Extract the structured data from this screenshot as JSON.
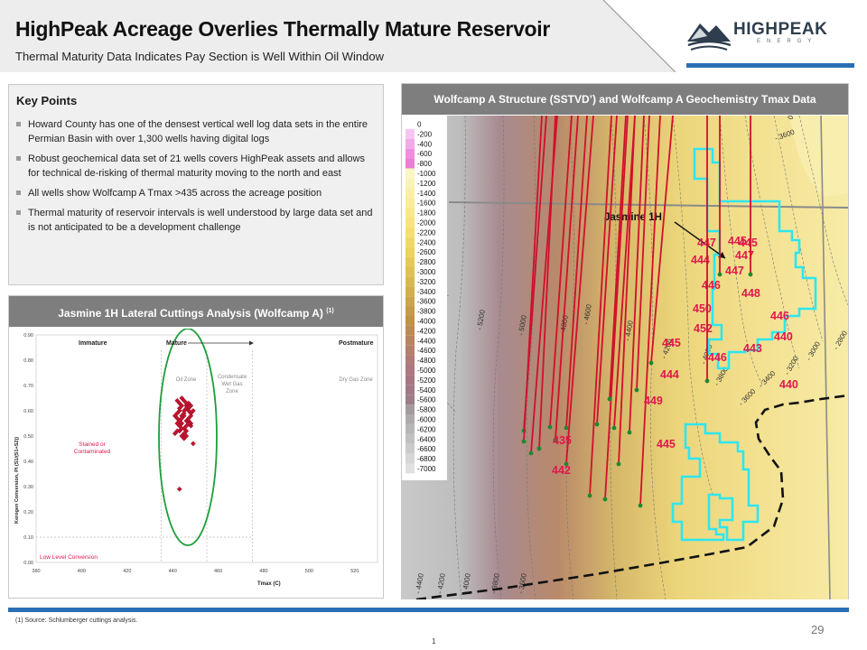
{
  "header": {
    "title": "HighPeak Acreage Overlies Thermally Mature Reservoir",
    "subtitle": "Thermal Maturity Data Indicates Pay Section is Well Within Oil Window"
  },
  "logo": {
    "name": "HIGHPEAK",
    "sub": "ENERGY"
  },
  "key_points": {
    "title": "Key Points",
    "items": [
      "Howard County has one of the densest vertical well log data sets in the entire Permian Basin with over 1,300 wells having digital logs",
      "Robust geochemical data set of 21 wells covers HighPeak assets and allows for technical de-risking of thermal maturity moving to the north and east",
      "All wells show Wolfcamp A Tmax >435 across the acreage position",
      "Thermal maturity of reservoir intervals is well understood by large data set and is not anticipated to be a development challenge"
    ]
  },
  "cuttings": {
    "title": "Jasmine 1H Lateral Cuttings Analysis (Wolfcamp A)",
    "title_sup": "(1)",
    "zone_labels": {
      "immature": "Immature",
      "mature": "Mature",
      "postmature": "Postmature",
      "oil_zone": "Oil Zone",
      "condensate_1": "Condensate",
      "condensate_2": "Wet Gas",
      "condensate_3": "Zone",
      "dry_gas": "Dry Gas Zone",
      "stained_1": "Stained or",
      "stained_2": "Contaminated",
      "low_level": "Low Level Conversion"
    },
    "chart_data": {
      "type": "scatter",
      "xlabel": "Tmax (C)",
      "ylabel": "Kerogen Conversion, PI (S1/(S1+S2))",
      "xlim": [
        380,
        530
      ],
      "ylim": [
        0.0,
        0.9
      ],
      "x_ticks": [
        "380",
        "400",
        "420",
        "440",
        "460",
        "480",
        "500",
        "520"
      ],
      "y_ticks": [
        "0.00",
        "0.10",
        "0.20",
        "0.30",
        "0.40",
        "0.50",
        "0.60",
        "0.70",
        "0.80",
        "0.90"
      ],
      "series": [
        {
          "x": [
            442,
            443,
            444,
            445,
            446,
            447,
            443,
            444,
            445,
            446,
            447,
            448,
            442,
            443,
            444,
            445,
            446,
            447,
            448,
            449,
            441,
            442,
            443,
            444,
            445,
            446,
            447,
            448,
            442,
            443,
            444,
            445,
            446,
            447,
            448,
            443,
            444,
            445,
            446,
            447,
            444,
            445,
            446,
            448,
            442,
            441,
            449,
            443
          ],
          "y": [
            0.64,
            0.63,
            0.65,
            0.64,
            0.62,
            0.63,
            0.61,
            0.62,
            0.6,
            0.63,
            0.61,
            0.62,
            0.59,
            0.6,
            0.58,
            0.59,
            0.61,
            0.6,
            0.59,
            0.6,
            0.58,
            0.57,
            0.56,
            0.57,
            0.58,
            0.56,
            0.57,
            0.55,
            0.55,
            0.54,
            0.55,
            0.53,
            0.54,
            0.56,
            0.54,
            0.52,
            0.53,
            0.51,
            0.52,
            0.55,
            0.5,
            0.49,
            0.5,
            0.58,
            0.52,
            0.51,
            0.47,
            0.29
          ]
        }
      ]
    }
  },
  "map": {
    "title": "Wolfcamp A Structure (SSTVD’) and Wolfcamp A Geochemistry Tmax Data",
    "legend_values": [
      "0",
      "-200",
      "-400",
      "-600",
      "-800",
      "-1000",
      "-1200",
      "-1400",
      "-1600",
      "-1800",
      "-2000",
      "-2200",
      "-2400",
      "-2600",
      "-2800",
      "-3000",
      "-3200",
      "-3400",
      "-3600",
      "-3800",
      "-4000",
      "-4200",
      "-4400",
      "-4600",
      "-4800",
      "-5000",
      "-5200",
      "-5400",
      "-5600",
      "-5800",
      "-6000",
      "-6200",
      "-6400",
      "-6600",
      "-6800",
      "-7000"
    ],
    "legend_colors": [
      "#ffffff",
      "#f7c6f0",
      "#f3a9e8",
      "#f08de0",
      "#ea7fd6",
      "#fbf6c4",
      "#fbf3b6",
      "#faefa8",
      "#f9ec9a",
      "#f8e88c",
      "#f7e47e",
      "#f5de70",
      "#f1d866",
      "#ecd25e",
      "#e6ca58",
      "#e0c154",
      "#d9b851",
      "#d2ae4f",
      "#cca44c",
      "#c69a4a",
      "#c19148",
      "#bd8a54",
      "#b98460",
      "#b57f6c",
      "#b17b78",
      "#ad7780",
      "#a87682",
      "#a37886",
      "#9e7c8a",
      "#a39aa0",
      "#aeaaae",
      "#b8b6b8",
      "#c2c1c2",
      "#cccbcc",
      "#d6d6d6",
      "#e0e0e0"
    ],
    "contour_labels": [
      "0",
      "- 3600",
      "- 5200",
      "- 5000",
      "- 4800",
      "- 4600",
      "- 4400",
      "- 4200",
      "- 4000",
      "- 3800",
      "- 3600",
      "- 3400",
      "- 3200",
      "- 3000",
      "- 2800",
      "- 4400",
      "- 4200",
      "- 4000",
      "- 3800",
      "- 3600"
    ],
    "well_label": "Jasmine 1H",
    "tmax_values": [
      "447",
      "445",
      "447",
      "445",
      "444",
      "447",
      "446",
      "448",
      "450",
      "446",
      "452",
      "440",
      "445",
      "443",
      "446",
      "440",
      "449",
      "445",
      "444",
      "435",
      "442"
    ]
  },
  "footer": {
    "footnote": "(1)    Source: Schlumberger cuttings analysis.",
    "page_number": "29",
    "page_number_2": "1"
  },
  "colors": {
    "accent": "#2a6fb5",
    "header_grey": "#7e7e7e",
    "tmax_red": "#e0174e",
    "acreage": "#2ee6f0"
  }
}
